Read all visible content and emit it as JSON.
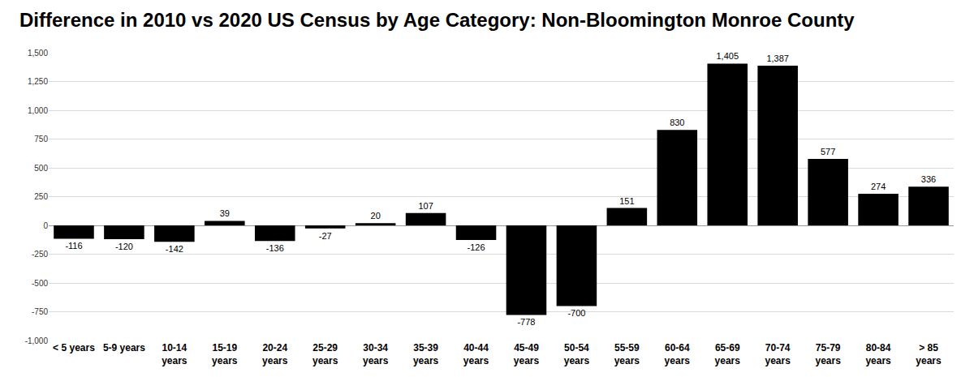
{
  "chart_data": {
    "type": "bar",
    "title": "Difference in 2010 vs 2020 US Census by Age Category: Non-Bloomington Monroe County",
    "categories": [
      "< 5 years",
      "5-9 years",
      "10-14 years",
      "15-19 years",
      "20-24 years",
      "25-29 years",
      "30-34 years",
      "35-39 years",
      "40-44 years",
      "45-49 years",
      "50-54 years",
      "55-59 years",
      "60-64 years",
      "65-69 years",
      "70-74 years",
      "75-79 years",
      "80-84 years",
      "> 85 years"
    ],
    "values": [
      -116,
      -120,
      -142,
      39,
      -136,
      -27,
      20,
      107,
      -126,
      -778,
      -700,
      151,
      830,
      1405,
      1387,
      577,
      274,
      336
    ],
    "value_labels": [
      "-116",
      "-120",
      "-142",
      "39",
      "-136",
      "-27",
      "20",
      "107",
      "-126",
      "-778",
      "-700",
      "151",
      "830",
      "1,405",
      "1,387",
      "577",
      "274",
      "336"
    ],
    "color": "#000000",
    "ylim": [
      -1000,
      1500
    ],
    "yticks": [
      {
        "value": -1000,
        "label": "-1,000"
      },
      -750,
      -500,
      -250,
      0,
      250,
      500,
      750,
      {
        "value": 1000,
        "label": "1,000"
      },
      {
        "value": 1250,
        "label": "1,250"
      },
      {
        "value": 1500,
        "label": "1,500"
      }
    ],
    "grid": true,
    "data_labels": true
  }
}
